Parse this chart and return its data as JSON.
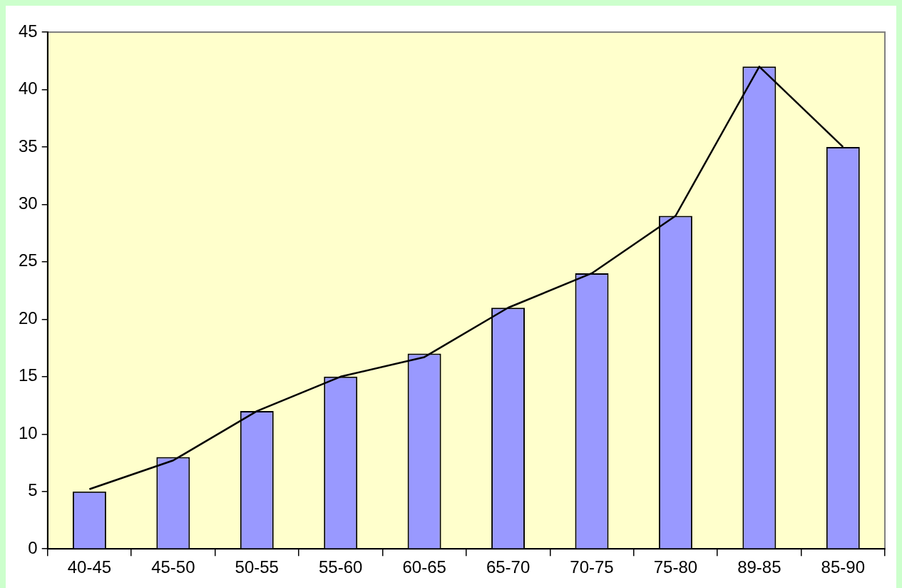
{
  "chart_data": {
    "type": "bar",
    "categories": [
      "40-45",
      "45-50",
      "50-55",
      "55-60",
      "60-65",
      "65-70",
      "70-75",
      "75-80",
      "89-85",
      "85-90"
    ],
    "series": [
      {
        "color": "#9999ff",
        "values": [
          5,
          8,
          12,
          15,
          17,
          21,
          24,
          29,
          42,
          35
        ]
      },
      {
        "type": "line",
        "color": "#000000",
        "marker": "none",
        "values": [
          5.2,
          7.7,
          12,
          15,
          16.7,
          21,
          24,
          29,
          42,
          35
        ]
      }
    ],
    "ylim": [
      0,
      45
    ],
    "yticks": [
      0,
      5,
      10,
      15,
      20,
      25,
      30,
      35,
      40,
      45
    ],
    "grid": false,
    "legend": false
  }
}
